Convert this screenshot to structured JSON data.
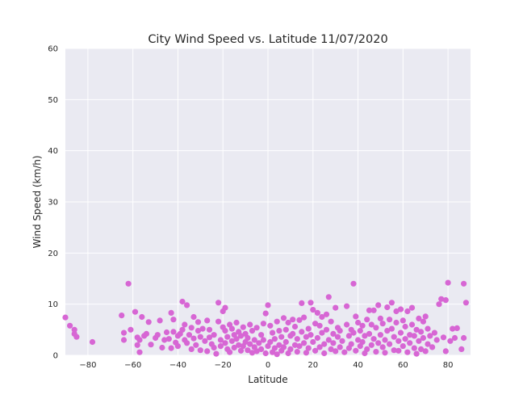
{
  "chart_data": {
    "type": "scatter",
    "title": "City Wind Speed vs. Latitude 11/07/2020",
    "xlabel": "Latitude",
    "ylabel": "Wind Speed (km/h)",
    "xlim": [
      -90,
      90
    ],
    "ylim": [
      0,
      60
    ],
    "xticks": [
      -80,
      -60,
      -40,
      -20,
      0,
      20,
      40,
      60,
      80
    ],
    "xtick_labels": [
      "−80",
      "−60",
      "−40",
      "−20",
      "0",
      "20",
      "40",
      "60",
      "80"
    ],
    "yticks": [
      0,
      10,
      20,
      30,
      40,
      50,
      60
    ],
    "ytick_labels": [
      "0",
      "10",
      "20",
      "30",
      "40",
      "50",
      "60"
    ],
    "grid": true,
    "marker_color": "#d766d4",
    "background_color": "#eaeaf2",
    "grid_color": "#ffffff",
    "points": [
      [
        -90,
        7.4
      ],
      [
        -88,
        5.8
      ],
      [
        -86,
        4.2
      ],
      [
        -86,
        5.0
      ],
      [
        -85,
        3.6
      ],
      [
        -78,
        2.6
      ],
      [
        -65,
        7.8
      ],
      [
        -64,
        4.4
      ],
      [
        -64,
        3.0
      ],
      [
        -62,
        14.0
      ],
      [
        -61,
        5.0
      ],
      [
        -59,
        8.5
      ],
      [
        -58,
        3.5
      ],
      [
        -58,
        2.0
      ],
      [
        -57,
        3.0
      ],
      [
        -57,
        0.6
      ],
      [
        -56,
        7.5
      ],
      [
        -55,
        3.8
      ],
      [
        -54,
        4.2
      ],
      [
        -53,
        6.5
      ],
      [
        -52,
        2.1
      ],
      [
        -50,
        3.4
      ],
      [
        -49,
        4.0
      ],
      [
        -48,
        6.8
      ],
      [
        -47,
        1.5
      ],
      [
        -46,
        3.0
      ],
      [
        -45,
        4.5
      ],
      [
        -44,
        3.2
      ],
      [
        -43,
        8.3
      ],
      [
        -43,
        1.4
      ],
      [
        -42,
        4.6
      ],
      [
        -42,
        7.0
      ],
      [
        -41,
        2.5
      ],
      [
        -40,
        3.8
      ],
      [
        -40,
        1.8
      ],
      [
        -39,
        4.2
      ],
      [
        -38,
        10.5
      ],
      [
        -38,
        5.0
      ],
      [
        -37,
        3.0
      ],
      [
        -37,
        6.0
      ],
      [
        -36,
        9.8
      ],
      [
        -36,
        2.4
      ],
      [
        -35,
        4.0
      ],
      [
        -34,
        5.4
      ],
      [
        -34,
        1.2
      ],
      [
        -33,
        7.5
      ],
      [
        -33,
        3.3
      ],
      [
        -32,
        2.0
      ],
      [
        -31,
        4.8
      ],
      [
        -31,
        6.5
      ],
      [
        -30,
        1.0
      ],
      [
        -30,
        3.6
      ],
      [
        -29,
        5.2
      ],
      [
        -28,
        2.8
      ],
      [
        -27,
        6.8
      ],
      [
        -27,
        0.8
      ],
      [
        -26,
        3.5
      ],
      [
        -26,
        5.0
      ],
      [
        -25,
        2.2
      ],
      [
        -24,
        1.5
      ],
      [
        -24,
        4.0
      ],
      [
        -23,
        0.3
      ],
      [
        -22,
        10.3
      ],
      [
        -22,
        6.6
      ],
      [
        -21,
        3.0
      ],
      [
        -21,
        1.8
      ],
      [
        -20,
        8.6
      ],
      [
        -20,
        5.5
      ],
      [
        -19,
        9.3
      ],
      [
        -19,
        2.4
      ],
      [
        -19,
        4.8
      ],
      [
        -18,
        1.2
      ],
      [
        -18,
        3.6
      ],
      [
        -17,
        6.0
      ],
      [
        -17,
        0.6
      ],
      [
        -16,
        2.8
      ],
      [
        -16,
        5.2
      ],
      [
        -15,
        4.0
      ],
      [
        -15,
        1.5
      ],
      [
        -14,
        3.2
      ],
      [
        -14,
        6.4
      ],
      [
        -13,
        2.0
      ],
      [
        -13,
        4.6
      ],
      [
        -12,
        0.9
      ],
      [
        -12,
        3.8
      ],
      [
        -11,
        5.5
      ],
      [
        -11,
        1.8
      ],
      [
        -10,
        2.6
      ],
      [
        -10,
        4.2
      ],
      [
        -9,
        1.0
      ],
      [
        -9,
        3.4
      ],
      [
        -8,
        6.0
      ],
      [
        -8,
        2.2
      ],
      [
        -7,
        0.5
      ],
      [
        -7,
        4.8
      ],
      [
        -6,
        1.6
      ],
      [
        -6,
        3.0
      ],
      [
        -5,
        5.4
      ],
      [
        -5,
        0.8
      ],
      [
        -4,
        2.4
      ],
      [
        -3,
        4.0
      ],
      [
        -3,
        1.2
      ],
      [
        -2,
        6.2
      ],
      [
        -2,
        3.0
      ],
      [
        -1,
        8.2
      ],
      [
        -1,
        0.4
      ],
      [
        0,
        1.8
      ],
      [
        0,
        9.8
      ],
      [
        1,
        5.8
      ],
      [
        1,
        2.6
      ],
      [
        2,
        0.6
      ],
      [
        2,
        4.4
      ],
      [
        3,
        1.4
      ],
      [
        3,
        3.2
      ],
      [
        4,
        0.2
      ],
      [
        4,
        6.6
      ],
      [
        5,
        2.0
      ],
      [
        5,
        4.8
      ],
      [
        6,
        0.9
      ],
      [
        6,
        3.6
      ],
      [
        7,
        7.3
      ],
      [
        7,
        1.6
      ],
      [
        8,
        5.0
      ],
      [
        8,
        2.6
      ],
      [
        9,
        0.4
      ],
      [
        9,
        6.4
      ],
      [
        10,
        3.8
      ],
      [
        10,
        1.2
      ],
      [
        11,
        7.0
      ],
      [
        11,
        4.2
      ],
      [
        12,
        2.0
      ],
      [
        12,
        5.6
      ],
      [
        13,
        0.7
      ],
      [
        13,
        3.2
      ],
      [
        14,
        6.9
      ],
      [
        14,
        1.8
      ],
      [
        15,
        10.2
      ],
      [
        15,
        4.6
      ],
      [
        16,
        2.4
      ],
      [
        16,
        7.4
      ],
      [
        17,
        0.5
      ],
      [
        17,
        3.6
      ],
      [
        18,
        5.2
      ],
      [
        18,
        1.4
      ],
      [
        19,
        10.3
      ],
      [
        19,
        4.0
      ],
      [
        20,
        8.9
      ],
      [
        20,
        2.6
      ],
      [
        21,
        6.2
      ],
      [
        21,
        0.9
      ],
      [
        22,
        8.3
      ],
      [
        22,
        3.4
      ],
      [
        23,
        5.8
      ],
      [
        23,
        1.6
      ],
      [
        24,
        7.5
      ],
      [
        24,
        4.4
      ],
      [
        25,
        2.2
      ],
      [
        25,
        0.4
      ],
      [
        26,
        8.0
      ],
      [
        26,
        5.0
      ],
      [
        27,
        11.4
      ],
      [
        27,
        3.0
      ],
      [
        28,
        1.2
      ],
      [
        28,
        6.6
      ],
      [
        29,
        4.2
      ],
      [
        29,
        2.4
      ],
      [
        30,
        9.3
      ],
      [
        30,
        0.8
      ],
      [
        31,
        5.4
      ],
      [
        31,
        3.6
      ],
      [
        32,
        1.6
      ],
      [
        32,
        4.8
      ],
      [
        33,
        2.8
      ],
      [
        34,
        0.6
      ],
      [
        35,
        9.6
      ],
      [
        35,
        6.0
      ],
      [
        36,
        3.8
      ],
      [
        36,
        1.4
      ],
      [
        37,
        5.0
      ],
      [
        37,
        2.2
      ],
      [
        38,
        14.0
      ],
      [
        38,
        4.4
      ],
      [
        39,
        7.6
      ],
      [
        39,
        0.9
      ],
      [
        40,
        3.0
      ],
      [
        40,
        6.4
      ],
      [
        41,
        1.8
      ],
      [
        41,
        4.8
      ],
      [
        42,
        5.8
      ],
      [
        42,
        2.6
      ],
      [
        43,
        0.4
      ],
      [
        43,
        3.8
      ],
      [
        44,
        7.0
      ],
      [
        44,
        1.2
      ],
      [
        45,
        8.8
      ],
      [
        45,
        4.2
      ],
      [
        46,
        2.0
      ],
      [
        46,
        6.0
      ],
      [
        47,
        8.8
      ],
      [
        47,
        3.2
      ],
      [
        48,
        0.7
      ],
      [
        48,
        5.4
      ],
      [
        49,
        9.8
      ],
      [
        49,
        2.4
      ],
      [
        50,
        7.2
      ],
      [
        50,
        4.0
      ],
      [
        51,
        1.6
      ],
      [
        51,
        6.2
      ],
      [
        52,
        3.0
      ],
      [
        52,
        0.5
      ],
      [
        53,
        9.4
      ],
      [
        53,
        4.8
      ],
      [
        54,
        7.0
      ],
      [
        54,
        2.2
      ],
      [
        55,
        10.3
      ],
      [
        55,
        5.2
      ],
      [
        56,
        1.0
      ],
      [
        56,
        3.6
      ],
      [
        57,
        8.6
      ],
      [
        57,
        6.4
      ],
      [
        58,
        2.8
      ],
      [
        58,
        0.9
      ],
      [
        59,
        9.0
      ],
      [
        59,
        4.4
      ],
      [
        60,
        1.8
      ],
      [
        60,
        6.8
      ],
      [
        61,
        3.2
      ],
      [
        61,
        5.6
      ],
      [
        62,
        8.6
      ],
      [
        62,
        0.6
      ],
      [
        63,
        4.0
      ],
      [
        63,
        2.4
      ],
      [
        64,
        9.3
      ],
      [
        64,
        6.0
      ],
      [
        65,
        1.4
      ],
      [
        65,
        3.8
      ],
      [
        66,
        5.0
      ],
      [
        66,
        0.3
      ],
      [
        67,
        7.2
      ],
      [
        67,
        2.8
      ],
      [
        68,
        4.6
      ],
      [
        68,
        1.2
      ],
      [
        69,
        6.6
      ],
      [
        69,
        3.4
      ],
      [
        70,
        7.6
      ],
      [
        70,
        0.8
      ],
      [
        71,
        5.2
      ],
      [
        71,
        2.2
      ],
      [
        72,
        3.8
      ],
      [
        73,
        1.6
      ],
      [
        74,
        4.4
      ],
      [
        75,
        3.0
      ],
      [
        76,
        10.0
      ],
      [
        77,
        11.0
      ],
      [
        78,
        3.5
      ],
      [
        79,
        10.8
      ],
      [
        79,
        0.8
      ],
      [
        80,
        14.2
      ],
      [
        81,
        2.8
      ],
      [
        82,
        5.2
      ],
      [
        83,
        3.4
      ],
      [
        84,
        5.3
      ],
      [
        86,
        1.2
      ],
      [
        87,
        14.0
      ],
      [
        87,
        3.4
      ],
      [
        88,
        10.3
      ]
    ]
  }
}
